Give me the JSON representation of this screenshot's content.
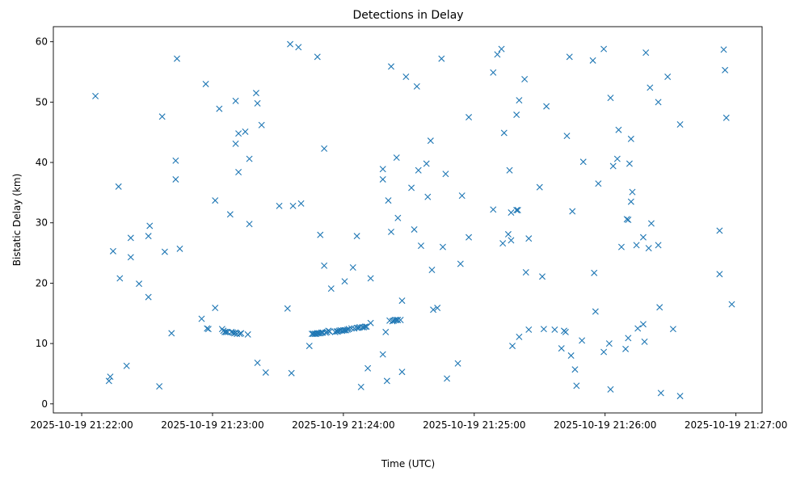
{
  "chart_data": {
    "type": "scatter",
    "title": "Detections in Delay",
    "xlabel": "Time (UTC)",
    "ylabel": "Bistatic Delay (km)",
    "marker": "x",
    "color": "#1f77b4",
    "grid": false,
    "x_unit": "seconds after 2025-10-19 21:22:00 UTC",
    "xlim": [
      -13,
      312
    ],
    "ylim": [
      -1.5,
      62.5
    ],
    "x_ticks": [
      {
        "value": 0,
        "label": "2025-10-19 21:22:00"
      },
      {
        "value": 60,
        "label": "2025-10-19 21:23:00"
      },
      {
        "value": 120,
        "label": "2025-10-19 21:24:00"
      },
      {
        "value": 180,
        "label": "2025-10-19 21:25:00"
      },
      {
        "value": 240,
        "label": "2025-10-19 21:26:00"
      },
      {
        "value": 300,
        "label": "2025-10-19 21:27:00"
      }
    ],
    "y_ticks": [
      {
        "value": 0,
        "label": "0"
      },
      {
        "value": 10,
        "label": "10"
      },
      {
        "value": 20,
        "label": "20"
      },
      {
        "value": 30,
        "label": "30"
      },
      {
        "value": 40,
        "label": "40"
      },
      {
        "value": 50,
        "label": "50"
      },
      {
        "value": 60,
        "label": "60"
      }
    ],
    "points": [
      [
        6.3,
        51.0
      ],
      [
        12.5,
        3.8
      ],
      [
        13.1,
        4.5
      ],
      [
        14.4,
        25.3
      ],
      [
        16.9,
        36.0
      ],
      [
        17.5,
        20.8
      ],
      [
        20.6,
        6.3
      ],
      [
        22.5,
        27.5
      ],
      [
        22.5,
        24.3
      ],
      [
        26.3,
        19.9
      ],
      [
        30.6,
        27.8
      ],
      [
        30.6,
        17.7
      ],
      [
        31.2,
        29.5
      ],
      [
        35.6,
        2.9
      ],
      [
        36.9,
        47.6
      ],
      [
        38.1,
        25.2
      ],
      [
        41.2,
        11.7
      ],
      [
        43.1,
        40.3
      ],
      [
        43.1,
        37.2
      ],
      [
        43.7,
        57.2
      ],
      [
        45.0,
        25.7
      ],
      [
        55.0,
        14.1
      ],
      [
        56.9,
        53.0
      ],
      [
        57.5,
        12.5
      ],
      [
        58.1,
        12.4
      ],
      [
        61.2,
        33.7
      ],
      [
        61.2,
        15.9
      ],
      [
        63.1,
        48.9
      ],
      [
        64.4,
        12.4
      ],
      [
        65.0,
        12.1
      ],
      [
        65.6,
        11.9
      ],
      [
        66.2,
        11.9
      ],
      [
        66.9,
        11.9
      ],
      [
        68.1,
        31.4
      ],
      [
        68.7,
        11.9
      ],
      [
        69.4,
        11.8
      ],
      [
        70.0,
        11.7
      ],
      [
        70.6,
        50.2
      ],
      [
        70.6,
        43.1
      ],
      [
        70.6,
        11.8
      ],
      [
        71.2,
        11.6
      ],
      [
        71.9,
        44.8
      ],
      [
        71.9,
        38.4
      ],
      [
        72.5,
        11.6
      ],
      [
        73.1,
        11.7
      ],
      [
        75.0,
        45.1
      ],
      [
        76.2,
        11.5
      ],
      [
        76.9,
        40.6
      ],
      [
        76.9,
        29.8
      ],
      [
        80.0,
        51.5
      ],
      [
        80.6,
        49.8
      ],
      [
        80.6,
        6.8
      ],
      [
        82.5,
        46.2
      ],
      [
        84.4,
        5.2
      ],
      [
        90.6,
        32.8
      ],
      [
        94.4,
        15.8
      ],
      [
        95.6,
        59.6
      ],
      [
        96.2,
        5.1
      ],
      [
        96.9,
        32.8
      ],
      [
        99.4,
        59.1
      ],
      [
        100.6,
        33.2
      ],
      [
        104.4,
        9.6
      ],
      [
        105.6,
        11.6
      ],
      [
        106.2,
        11.6
      ],
      [
        106.9,
        11.6
      ],
      [
        107.5,
        11.6
      ],
      [
        108.1,
        57.5
      ],
      [
        108.1,
        11.7
      ],
      [
        108.7,
        11.7
      ],
      [
        109.4,
        28.0
      ],
      [
        109.4,
        11.7
      ],
      [
        110.0,
        11.8
      ],
      [
        110.6,
        11.8
      ],
      [
        111.2,
        42.3
      ],
      [
        111.2,
        22.9
      ],
      [
        111.9,
        11.8
      ],
      [
        112.5,
        11.9
      ],
      [
        113.1,
        12.1
      ],
      [
        113.7,
        12.0
      ],
      [
        114.4,
        19.1
      ],
      [
        116.2,
        11.9
      ],
      [
        116.9,
        12.0
      ],
      [
        117.5,
        12.0
      ],
      [
        118.1,
        12.1
      ],
      [
        118.7,
        12.2
      ],
      [
        119.4,
        12.1
      ],
      [
        120.0,
        12.2
      ],
      [
        120.6,
        20.3
      ],
      [
        120.6,
        12.2
      ],
      [
        121.2,
        12.2
      ],
      [
        121.9,
        12.3
      ],
      [
        122.5,
        12.4
      ],
      [
        123.7,
        12.5
      ],
      [
        124.4,
        22.6
      ],
      [
        125.0,
        12.5
      ],
      [
        126.2,
        27.8
      ],
      [
        126.2,
        12.6
      ],
      [
        126.9,
        12.6
      ],
      [
        127.5,
        12.7
      ],
      [
        128.1,
        2.8
      ],
      [
        128.7,
        12.7
      ],
      [
        129.4,
        12.7
      ],
      [
        130.0,
        12.8
      ],
      [
        130.6,
        12.8
      ],
      [
        131.2,
        5.9
      ],
      [
        132.5,
        20.8
      ],
      [
        132.5,
        13.4
      ],
      [
        138.1,
        8.2
      ],
      [
        138.1,
        38.9
      ],
      [
        138.1,
        37.2
      ],
      [
        139.4,
        11.9
      ],
      [
        140.0,
        3.8
      ],
      [
        140.6,
        33.7
      ],
      [
        141.2,
        13.8
      ],
      [
        141.9,
        28.5
      ],
      [
        141.9,
        55.9
      ],
      [
        142.5,
        13.7
      ],
      [
        143.1,
        13.8
      ],
      [
        143.7,
        13.9
      ],
      [
        144.4,
        40.8
      ],
      [
        144.4,
        13.9
      ],
      [
        145.0,
        13.9
      ],
      [
        145.0,
        30.8
      ],
      [
        146.2,
        13.9
      ],
      [
        146.9,
        5.3
      ],
      [
        146.9,
        17.1
      ],
      [
        148.7,
        54.2
      ],
      [
        151.2,
        35.8
      ],
      [
        152.5,
        28.9
      ],
      [
        153.7,
        52.6
      ],
      [
        154.4,
        38.7
      ],
      [
        155.6,
        26.2
      ],
      [
        158.1,
        39.8
      ],
      [
        158.7,
        34.3
      ],
      [
        160.0,
        43.6
      ],
      [
        160.6,
        22.2
      ],
      [
        161.2,
        15.6
      ],
      [
        163.1,
        15.9
      ],
      [
        165.0,
        57.2
      ],
      [
        165.6,
        26.0
      ],
      [
        166.9,
        38.1
      ],
      [
        167.5,
        4.2
      ],
      [
        172.5,
        6.7
      ],
      [
        173.7,
        23.2
      ],
      [
        174.4,
        34.5
      ],
      [
        177.5,
        27.6
      ],
      [
        177.5,
        47.5
      ],
      [
        188.7,
        32.2
      ],
      [
        188.7,
        54.9
      ],
      [
        190.6,
        57.9
      ],
      [
        192.5,
        58.8
      ],
      [
        193.1,
        26.6
      ],
      [
        193.7,
        44.9
      ],
      [
        195.6,
        28.1
      ],
      [
        196.2,
        38.7
      ],
      [
        196.9,
        27.1
      ],
      [
        196.9,
        31.7
      ],
      [
        197.5,
        9.6
      ],
      [
        199.4,
        32.1
      ],
      [
        199.4,
        47.9
      ],
      [
        200.0,
        32.1
      ],
      [
        200.6,
        50.3
      ],
      [
        200.6,
        11.1
      ],
      [
        203.1,
        53.8
      ],
      [
        203.7,
        21.8
      ],
      [
        205.0,
        27.4
      ],
      [
        205.0,
        12.3
      ],
      [
        210.0,
        35.9
      ],
      [
        211.2,
        21.1
      ],
      [
        211.9,
        12.4
      ],
      [
        213.1,
        49.3
      ],
      [
        216.9,
        12.3
      ],
      [
        220.0,
        9.2
      ],
      [
        221.2,
        12.1
      ],
      [
        221.9,
        11.9
      ],
      [
        222.5,
        44.4
      ],
      [
        223.7,
        57.5
      ],
      [
        224.4,
        8.0
      ],
      [
        225.0,
        31.9
      ],
      [
        226.2,
        5.7
      ],
      [
        226.9,
        3.0
      ],
      [
        229.4,
        10.5
      ],
      [
        230.0,
        40.1
      ],
      [
        234.4,
        56.9
      ],
      [
        235.0,
        21.7
      ],
      [
        235.6,
        15.3
      ],
      [
        236.9,
        36.5
      ],
      [
        239.4,
        58.8
      ],
      [
        239.4,
        8.6
      ],
      [
        241.9,
        10.0
      ],
      [
        242.5,
        2.4
      ],
      [
        242.5,
        50.7
      ],
      [
        243.7,
        39.4
      ],
      [
        245.6,
        40.6
      ],
      [
        246.2,
        45.4
      ],
      [
        247.5,
        26.0
      ],
      [
        249.4,
        9.1
      ],
      [
        250.0,
        30.6
      ],
      [
        250.6,
        30.5
      ],
      [
        250.6,
        10.9
      ],
      [
        251.2,
        39.8
      ],
      [
        251.9,
        43.9
      ],
      [
        251.9,
        33.5
      ],
      [
        252.5,
        35.1
      ],
      [
        254.4,
        26.3
      ],
      [
        255.0,
        12.5
      ],
      [
        257.5,
        27.6
      ],
      [
        257.5,
        13.2
      ],
      [
        258.1,
        10.3
      ],
      [
        258.7,
        58.2
      ],
      [
        260.0,
        25.8
      ],
      [
        260.6,
        52.4
      ],
      [
        261.2,
        29.9
      ],
      [
        264.4,
        26.3
      ],
      [
        264.4,
        50.0
      ],
      [
        265.0,
        16.0
      ],
      [
        265.6,
        1.8
      ],
      [
        268.7,
        54.2
      ],
      [
        271.2,
        12.4
      ],
      [
        274.4,
        46.3
      ],
      [
        274.4,
        1.3
      ],
      [
        292.5,
        28.7
      ],
      [
        292.5,
        21.5
      ],
      [
        294.4,
        58.7
      ],
      [
        295.0,
        55.3
      ],
      [
        295.6,
        47.4
      ],
      [
        298.1,
        16.5
      ]
    ]
  }
}
